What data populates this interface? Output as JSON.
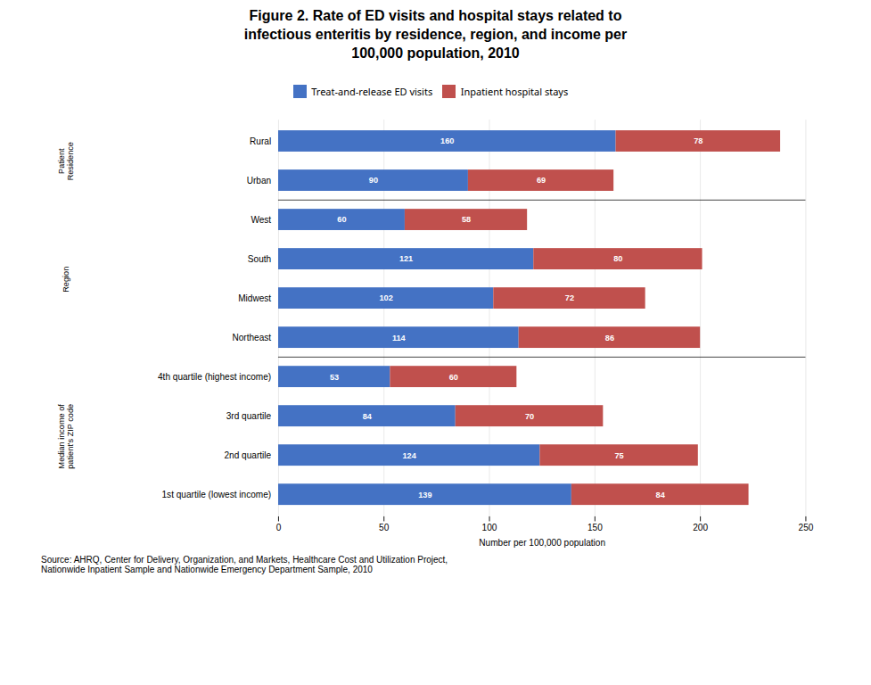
{
  "chart_data": {
    "type": "bar",
    "orientation": "horizontal",
    "stacked": true,
    "title": "Figure 2. Rate of ED visits and hospital stays related to\ninfectious enteritis by residence, region, and income per\n100,000 population, 2010",
    "xlabel": "Number per 100,000 population",
    "categories": [
      "Rural",
      "Urban",
      "West",
      "South",
      "Midwest",
      "Northeast",
      "4th quartile (highest income)",
      "3rd quartile",
      "2nd quartile",
      "1st quartile (lowest income)"
    ],
    "series": [
      {
        "name": "Treat-and-release ED visits",
        "color": "#4472C4",
        "values": [
          160,
          90,
          60,
          121,
          102,
          114,
          53,
          84,
          124,
          139
        ]
      },
      {
        "name": "Inpatient hospital stays",
        "color": "#C0504D",
        "values": [
          78,
          69,
          58,
          80,
          72,
          86,
          60,
          70,
          75,
          84
        ]
      }
    ],
    "xlim": [
      0,
      250
    ],
    "xticks": [
      0,
      50,
      100,
      150,
      200,
      250
    ],
    "grid": true,
    "data_labels": true,
    "legend": "top",
    "annotations": [
      {
        "text": "Patient\nResidence",
        "categories": [
          "Rural",
          "Urban"
        ]
      },
      {
        "text": "Region",
        "categories": [
          "West",
          "South",
          "Midwest",
          "Northeast"
        ]
      },
      {
        "text": "Median income of\npatient's ZIP code",
        "categories": [
          "4th quartile (highest income)",
          "3rd quartile",
          "2nd quartile",
          "1st quartile (lowest income)"
        ]
      }
    ],
    "source": "Source: AHRQ, Center for Delivery, Organization, and Markets, Healthcare Cost and Utilization Project,\nNationwide Inpatient Sample and Nationwide Emergency Department Sample, 2010"
  }
}
